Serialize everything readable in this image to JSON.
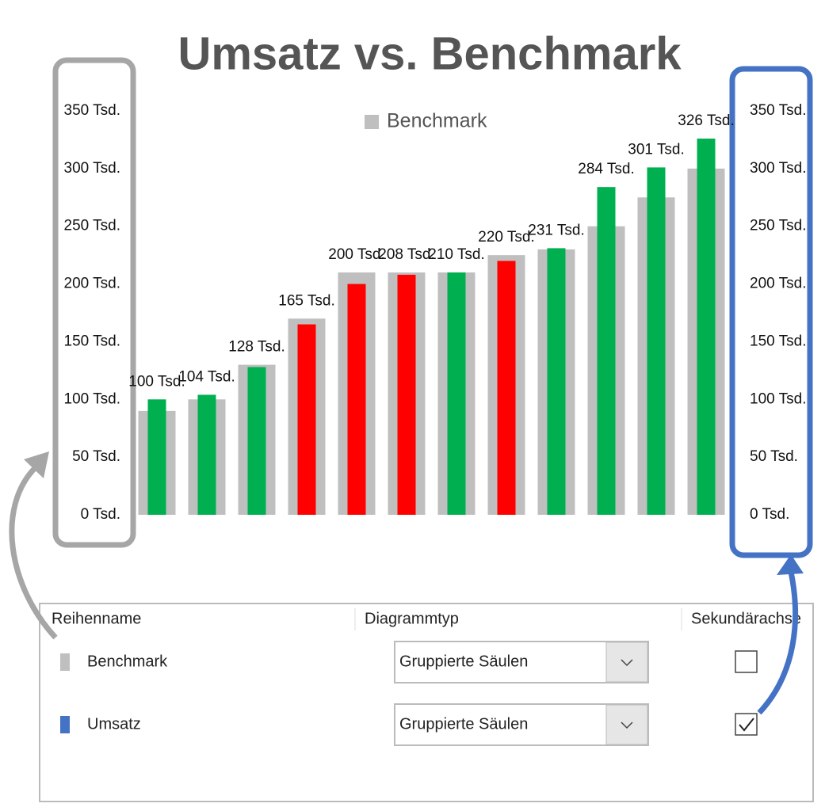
{
  "chart_data": {
    "type": "bar",
    "title": "Umsatz vs. Benchmark",
    "categories": [
      null,
      null,
      null,
      null,
      null,
      null,
      null,
      null,
      null,
      null,
      null,
      null
    ],
    "series": [
      {
        "name": "Benchmark",
        "color": "#bfbfbf",
        "axis": "y",
        "values": [
          90,
          100,
          130,
          170,
          210,
          210,
          210,
          225,
          230,
          250,
          275,
          300
        ]
      },
      {
        "name": "Umsatz",
        "axis": "y2",
        "colors": [
          "#00b050",
          "#00b050",
          "#00b050",
          "#ff0000",
          "#ff0000",
          "#ff0000",
          "#00b050",
          "#ff0000",
          "#00b050",
          "#00b050",
          "#00b050",
          "#00b050"
        ],
        "values": [
          100,
          104,
          128,
          165,
          200,
          208,
          210,
          220,
          231,
          284,
          301,
          326
        ],
        "value_labels": [
          "100 Tsd.",
          "104 Tsd.",
          "128 Tsd.",
          "165 Tsd.",
          "200 Tsd.",
          "208 Tsd.",
          "210 Tsd.",
          "220 Tsd.",
          "231 Tsd.",
          "284 Tsd.",
          "301 Tsd.",
          "326 Tsd."
        ]
      }
    ],
    "legend": [
      "Benchmark"
    ],
    "ylim": [
      0,
      350
    ],
    "yticks": [
      {
        "value": 0,
        "label": "0 Tsd."
      },
      {
        "value": 50,
        "label": "50 Tsd."
      },
      {
        "value": 100,
        "label": "100 Tsd."
      },
      {
        "value": 150,
        "label": "150 Tsd."
      },
      {
        "value": 200,
        "label": "200 Tsd."
      },
      {
        "value": 250,
        "label": "250 Tsd."
      },
      {
        "value": 300,
        "label": "300 Tsd."
      },
      {
        "value": 350,
        "label": "350 Tsd."
      }
    ],
    "y2lim": [
      0,
      350
    ],
    "y2ticks": [
      {
        "value": 0,
        "label": "0 Tsd."
      },
      {
        "value": 50,
        "label": "50 Tsd."
      },
      {
        "value": 100,
        "label": "100 Tsd."
      },
      {
        "value": 150,
        "label": "150 Tsd."
      },
      {
        "value": 200,
        "label": "200 Tsd."
      },
      {
        "value": 250,
        "label": "250 Tsd."
      },
      {
        "value": 300,
        "label": "300 Tsd."
      },
      {
        "value": 350,
        "label": "350 Tsd."
      }
    ],
    "grid": false
  },
  "panel": {
    "columns": [
      "Reihenname",
      "Diagrammtyp",
      "Sekundärachse"
    ],
    "rows": [
      {
        "name": "Benchmark",
        "color": "#bfbfbf",
        "chart_type": "Gruppierte Säulen",
        "secondary_axis": false
      },
      {
        "name": "Umsatz",
        "color": "#4472c4",
        "chart_type": "Gruppierte Säulen",
        "secondary_axis": true
      }
    ]
  }
}
